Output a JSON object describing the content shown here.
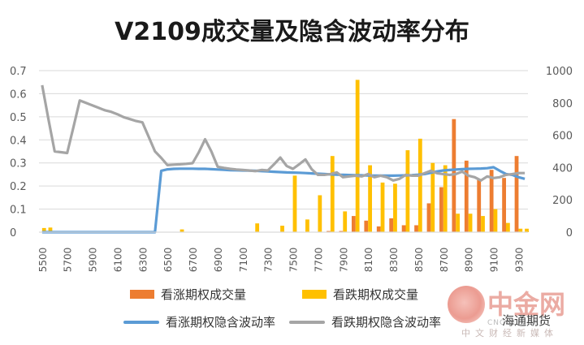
{
  "title": "V2109成交量及隐含波动率分布",
  "legend": {
    "call_volume": "看涨期权成交量",
    "put_volume": "看跌期权成交量",
    "call_iv": "看涨期权隐含波动率",
    "put_iv": "看跌期权隐含波动率"
  },
  "watermark": {
    "brand": "中金网",
    "url": "CNGOLD.ORG",
    "subtitle": "中文财经新媒体",
    "account": "海通期货"
  },
  "colors": {
    "call_volume": "#ED7D31",
    "put_volume": "#FFC000",
    "call_iv": "#5B9BD5",
    "put_iv": "#A5A5A5",
    "axis": "#595959",
    "grid": "#D9D9D9"
  },
  "chart_data": {
    "type": "bar",
    "x_ticks": [
      "5500",
      "5700",
      "5900",
      "6100",
      "6300",
      "6500",
      "6700",
      "6900",
      "7100",
      "7300",
      "7500",
      "7700",
      "7900",
      "8100",
      "8300",
      "8500",
      "8700",
      "8900",
      "9100",
      "9300"
    ],
    "x": [
      5500,
      5550,
      5600,
      5650,
      5700,
      5750,
      5800,
      5850,
      5900,
      5950,
      6000,
      6050,
      6100,
      6150,
      6200,
      6250,
      6300,
      6350,
      6400,
      6450,
      6500,
      6550,
      6600,
      6650,
      6700,
      6750,
      6800,
      6850,
      6900,
      6950,
      7000,
      7050,
      7100,
      7150,
      7200,
      7250,
      7300,
      7350,
      7400,
      7450,
      7500,
      7550,
      7600,
      7650,
      7700,
      7750,
      7800,
      7850,
      7900,
      7950,
      8000,
      8050,
      8100,
      8150,
      8200,
      8250,
      8300,
      8350,
      8400,
      8450,
      8500,
      8550,
      8600,
      8650,
      8700,
      8750,
      8800,
      8850,
      8900,
      8950,
      9000,
      9050,
      9100,
      9150,
      9200,
      9250,
      9300,
      9350
    ],
    "y_left_range": [
      0,
      0.7
    ],
    "y_left_ticks": [
      "0",
      "0.1",
      "0.2",
      "0.3",
      "0.4",
      "0.5",
      "0.6",
      "0.7"
    ],
    "y_right_range": [
      0,
      1000
    ],
    "y_right_ticks": [
      "0",
      "200",
      "400",
      "600",
      "800",
      "1000"
    ],
    "grid": true,
    "legend_position": "bottom",
    "series": [
      {
        "name": "看涨期权成交量",
        "type": "bar",
        "axis": "left",
        "values": [
          0,
          0,
          0,
          0,
          0,
          0,
          0,
          0,
          0,
          0,
          0,
          0,
          0,
          0,
          0,
          0,
          0,
          0,
          0,
          0,
          0,
          0,
          0,
          0,
          0,
          0,
          0,
          0,
          0,
          0,
          0,
          0,
          0,
          0,
          0,
          0,
          0,
          0,
          0,
          0,
          0,
          0,
          0,
          0,
          0,
          0,
          0.005,
          0,
          0.005,
          0,
          0.07,
          0,
          0.05,
          0,
          0.025,
          0,
          0.06,
          0,
          0.03,
          0,
          0.03,
          0,
          0.125,
          0,
          0.195,
          0,
          0.49,
          0,
          0.31,
          0,
          0.23,
          0,
          0.27,
          0,
          0.235,
          0,
          0.33,
          0
        ]
      },
      {
        "name": "看跌期权成交量",
        "type": "bar",
        "axis": "left",
        "values": [
          0.018,
          0.02,
          0,
          0,
          0,
          0,
          0,
          0,
          0,
          0,
          0,
          0,
          0,
          0,
          0,
          0,
          0,
          0,
          0,
          0,
          0,
          0,
          0.012,
          0,
          0,
          0,
          0,
          0,
          0,
          0,
          0,
          0,
          0,
          0,
          0.038,
          0,
          0,
          0,
          0.028,
          0,
          0.245,
          0,
          0.055,
          0,
          0.16,
          0,
          0.33,
          0,
          0.09,
          0,
          0.66,
          0,
          0.29,
          0,
          0.215,
          0,
          0.21,
          0,
          0.355,
          0,
          0.405,
          0,
          0.3,
          0,
          0.29,
          0,
          0.08,
          0,
          0.08,
          0,
          0.07,
          0,
          0.1,
          0,
          0.04,
          0,
          0.015,
          0.015
        ]
      },
      {
        "name": "看涨期权隐含波动率",
        "type": "line",
        "axis": "right",
        "values": [
          0,
          0,
          0,
          0,
          0,
          0,
          0,
          0,
          0,
          0,
          0,
          0,
          0,
          0,
          0,
          0,
          0,
          0,
          0,
          380,
          389,
          392,
          393,
          393,
          393,
          392,
          392,
          390,
          388,
          386,
          384,
          383,
          382,
          381,
          380,
          378,
          376,
          374,
          372,
          370,
          369,
          368,
          366,
          364,
          362,
          360,
          358,
          356,
          355,
          354,
          353,
          352,
          351,
          350,
          350,
          350,
          350,
          351,
          352,
          353,
          356,
          360,
          368,
          376,
          382,
          385,
          388,
          390,
          392,
          393,
          394,
          396,
          402,
          380,
          360,
          355,
          340,
          330
        ]
      },
      {
        "name": "看跌期权隐含波动率",
        "type": "line",
        "axis": "right",
        "values": [
          910,
          700,
          500,
          495,
          490,
          650,
          815,
          800,
          785,
          770,
          755,
          745,
          730,
          712,
          700,
          688,
          680,
          590,
          500,
          460,
          415,
          418,
          420,
          423,
          427,
          495,
          575,
          500,
          405,
          398,
          392,
          388,
          385,
          382,
          378,
          385,
          382,
          420,
          462,
          410,
          392,
          420,
          450,
          390,
          355,
          355,
          360,
          370,
          340,
          345,
          350,
          345,
          360,
          340,
          350,
          340,
          320,
          330,
          355,
          350,
          350,
          365,
          380,
          365,
          360,
          355,
          360,
          375,
          350,
          340,
          320,
          345,
          335,
          340,
          355,
          360,
          366,
          366
        ]
      }
    ]
  }
}
